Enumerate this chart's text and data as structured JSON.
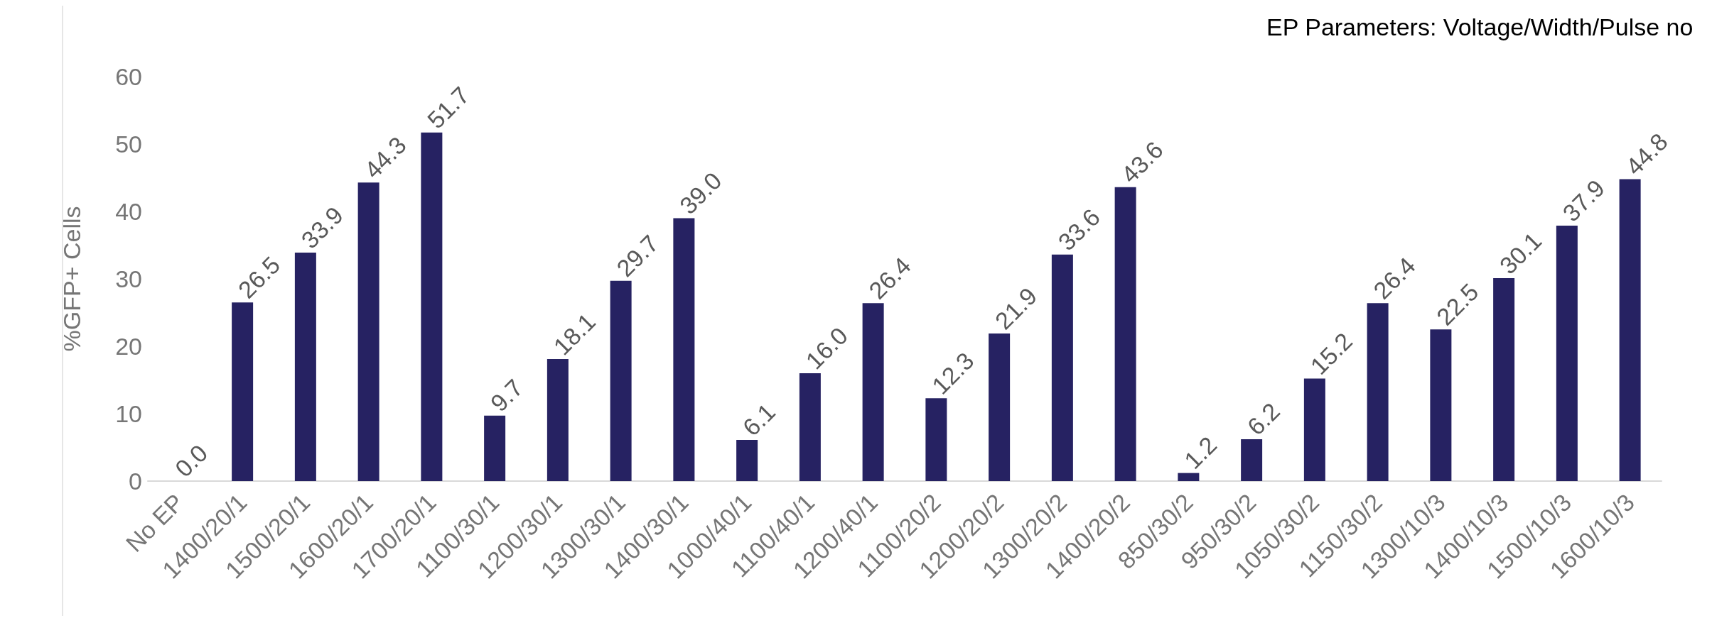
{
  "chart_data": {
    "type": "bar",
    "title": "EP Parameters: Voltage/Width/Pulse no",
    "ylabel": "%GFP+ Cells",
    "categories": [
      "No EP",
      "1400/20/1",
      "1500/20/1",
      "1600/20/1",
      "1700/20/1",
      "1100/30/1",
      "1200/30/1",
      "1300/30/1",
      "1400/30/1",
      "1000/40/1",
      "1100/40/1",
      "1200/40/1",
      "1100/20/2",
      "1200/20/2",
      "1300/20/2",
      "1400/20/2",
      "850/30/2",
      "950/30/2",
      "1050/30/2",
      "1150/30/2",
      "1300/10/3",
      "1400/10/3",
      "1500/10/3",
      "1600/10/3"
    ],
    "values": [
      0.0,
      26.5,
      33.9,
      44.3,
      51.7,
      9.7,
      18.1,
      29.7,
      39.0,
      6.1,
      16.0,
      26.4,
      12.3,
      21.9,
      33.6,
      43.6,
      1.2,
      6.2,
      15.2,
      26.4,
      22.5,
      30.1,
      37.9,
      44.8
    ],
    "color": "#262262",
    "ylim": [
      0,
      60
    ],
    "yticks": [
      0,
      10,
      20,
      30,
      40,
      50,
      60
    ],
    "grid": false,
    "value_labels": [
      "0.0",
      "26.5",
      "33.9",
      "44.3",
      "51.7",
      "9.7",
      "18.1",
      "29.7",
      "39.0",
      "6.1",
      "16.0",
      "26.4",
      "12.3",
      "21.9",
      "33.6",
      "43.6",
      "1.2",
      "6.2",
      "15.2",
      "26.4",
      "22.5",
      "30.1",
      "37.9",
      "44.8"
    ]
  }
}
